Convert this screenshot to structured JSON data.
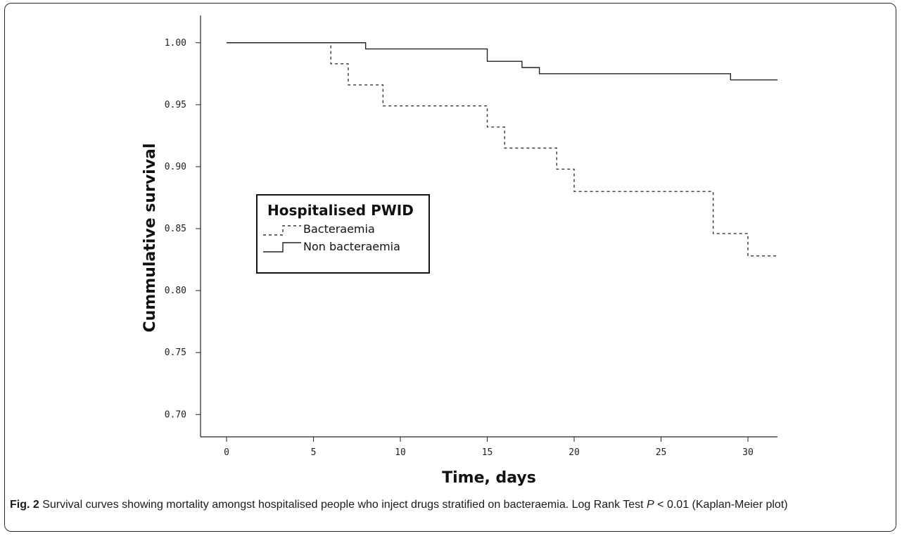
{
  "chart_data": {
    "type": "line",
    "subtype": "kaplan-meier step",
    "xlabel": "Time, days",
    "ylabel": "Cummulative survival",
    "x_ticks": [
      0,
      5,
      10,
      15,
      20,
      25,
      30
    ],
    "y_ticks": [
      0.7,
      0.75,
      0.8,
      0.85,
      0.9,
      0.95,
      1.0
    ],
    "y_tick_labels": [
      "0.70",
      "0.75",
      "0.80",
      "0.85",
      "0.90",
      "0.95",
      "1.00"
    ],
    "xlim": [
      -1.5,
      31.7
    ],
    "ylim": [
      0.682,
      1.022
    ],
    "grid": false,
    "legend": {
      "title": "Hospitalised PWID",
      "placement": "center-left"
    },
    "series": [
      {
        "name": "Bacteraemia",
        "style": "dashed",
        "color": "#333333",
        "x": [
          0,
          6,
          7,
          9,
          15,
          16,
          19,
          20,
          28,
          30,
          31.7
        ],
        "y": [
          1.0,
          0.983,
          0.966,
          0.949,
          0.932,
          0.915,
          0.898,
          0.88,
          0.846,
          0.828,
          0.828
        ]
      },
      {
        "name": "Non bacteraemia",
        "style": "solid",
        "color": "#222222",
        "x": [
          0,
          8,
          15,
          17,
          18,
          29,
          31.7
        ],
        "y": [
          1.0,
          0.995,
          0.985,
          0.98,
          0.975,
          0.97,
          0.97
        ]
      }
    ]
  },
  "caption": {
    "label": "Fig. 2",
    "text_before_p": " Survival curves showing mortality amongst hospitalised people who inject drugs stratified on bacteraemia. Log Rank Test ",
    "p_symbol": "P",
    "text_after_p": " < 0.01 (Kaplan-Meier plot)"
  }
}
